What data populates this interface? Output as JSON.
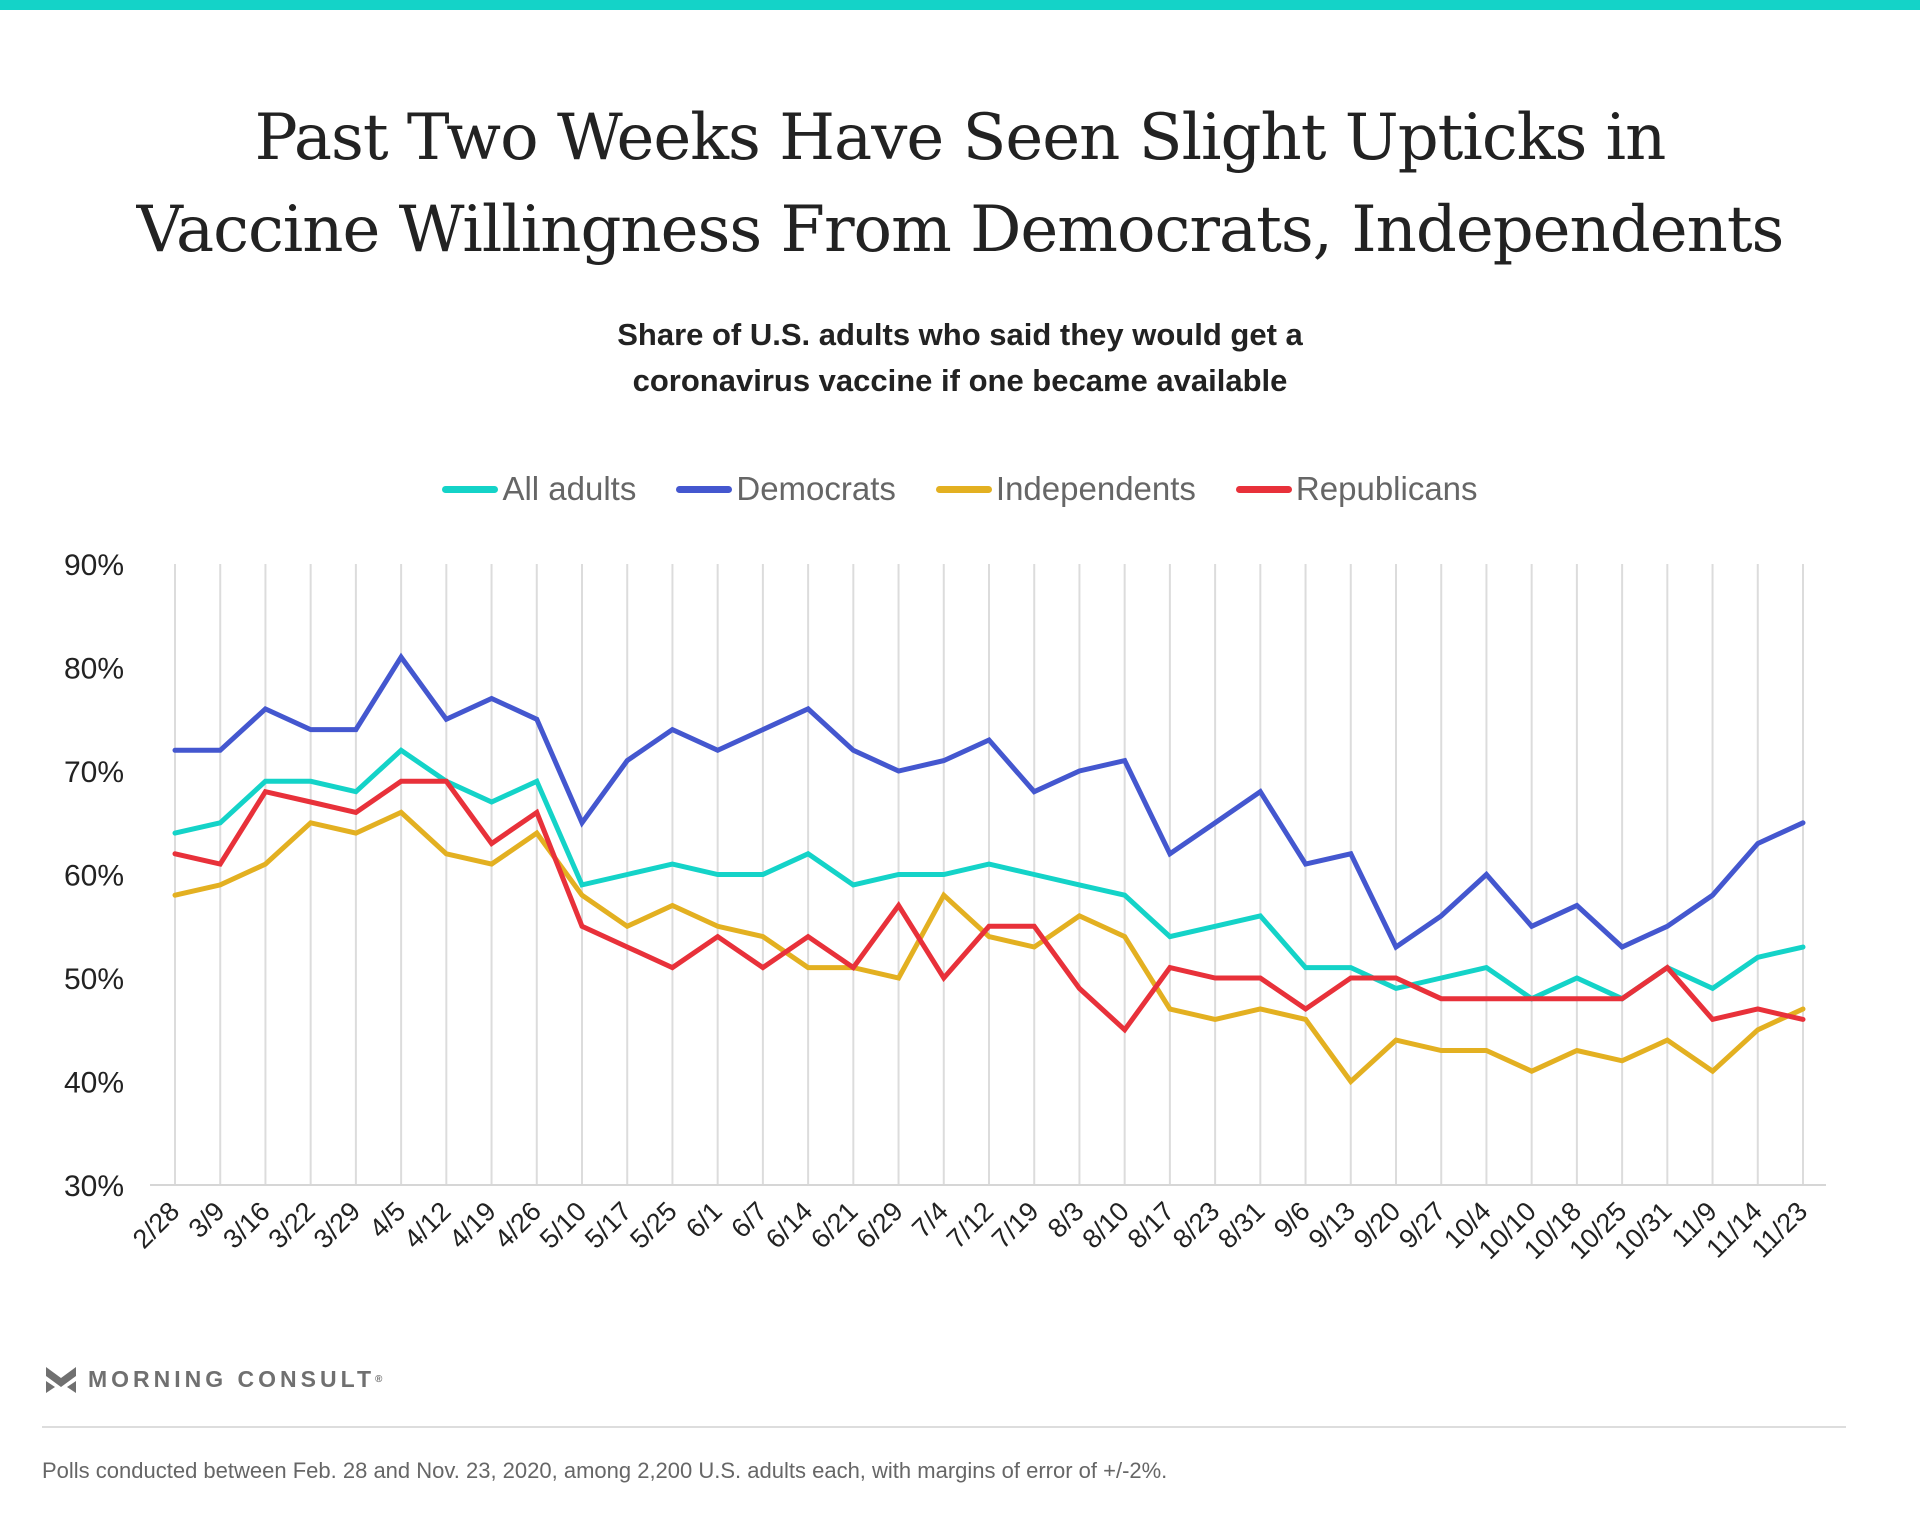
{
  "header": {
    "title_line1": "Past Two Weeks Have Seen Slight Upticks in",
    "title_line2": "Vaccine Willingness From Democrats, Independents",
    "subtitle_line1": "Share of U.S. adults who said they would get a",
    "subtitle_line2": "coronavirus vaccine if one became available"
  },
  "branding": {
    "logo_text": "MORNING CONSULT",
    "registered_mark": "®",
    "accent": "#14d3c8"
  },
  "footnote": "Polls conducted between Feb. 28 and Nov. 23, 2020, among 2,200 U.S. adults each, with margins of error of +/-2%.",
  "chart_data": {
    "type": "line",
    "title": "Share of U.S. adults who said they would get a coronavirus vaccine if one became available",
    "xlabel": "",
    "ylabel": "",
    "ylim": [
      30,
      90
    ],
    "yticks": [
      30,
      40,
      50,
      60,
      70,
      80,
      90
    ],
    "ytick_labels": [
      "30%",
      "40%",
      "50%",
      "60%",
      "70%",
      "80%",
      "90%"
    ],
    "grid": "vertical",
    "legend_position": "top-center",
    "categories": [
      "2/28",
      "3/9",
      "3/16",
      "3/22",
      "3/29",
      "4/5",
      "4/12",
      "4/19",
      "4/26",
      "5/10",
      "5/17",
      "5/25",
      "6/1",
      "6/7",
      "6/14",
      "6/21",
      "6/29",
      "7/4",
      "7/12",
      "7/19",
      "8/3",
      "8/10",
      "8/17",
      "8/23",
      "8/31",
      "9/6",
      "9/13",
      "9/20",
      "9/27",
      "10/4",
      "10/10",
      "10/18",
      "10/25",
      "10/31",
      "11/9",
      "11/14",
      "11/23"
    ],
    "series": [
      {
        "name": "All adults",
        "color": "#14d3c8",
        "values": [
          64,
          65,
          69,
          69,
          68,
          72,
          69,
          67,
          69,
          59,
          60,
          61,
          60,
          60,
          62,
          59,
          60,
          60,
          61,
          60,
          59,
          58,
          54,
          55,
          56,
          51,
          51,
          49,
          50,
          51,
          48,
          50,
          48,
          51,
          49,
          52,
          53
        ]
      },
      {
        "name": "Democrats",
        "color": "#4457cf",
        "values": [
          72,
          72,
          76,
          74,
          74,
          81,
          75,
          77,
          75,
          65,
          71,
          74,
          72,
          74,
          76,
          72,
          70,
          71,
          73,
          68,
          70,
          71,
          62,
          65,
          68,
          61,
          62,
          53,
          56,
          60,
          55,
          57,
          53,
          55,
          58,
          63,
          65
        ]
      },
      {
        "name": "Independents",
        "color": "#e3b021",
        "values": [
          58,
          59,
          61,
          65,
          64,
          66,
          62,
          61,
          64,
          58,
          55,
          57,
          55,
          54,
          51,
          51,
          50,
          58,
          54,
          53,
          56,
          54,
          47,
          46,
          47,
          46,
          40,
          44,
          43,
          43,
          41,
          43,
          42,
          44,
          41,
          45,
          47
        ]
      },
      {
        "name": "Republicans",
        "color": "#e8313a",
        "values": [
          62,
          61,
          68,
          67,
          66,
          69,
          69,
          63,
          66,
          55,
          53,
          51,
          54,
          51,
          54,
          51,
          57,
          50,
          55,
          55,
          49,
          45,
          51,
          50,
          50,
          47,
          50,
          50,
          48,
          48,
          48,
          48,
          48,
          51,
          46,
          47,
          46
        ]
      }
    ]
  }
}
